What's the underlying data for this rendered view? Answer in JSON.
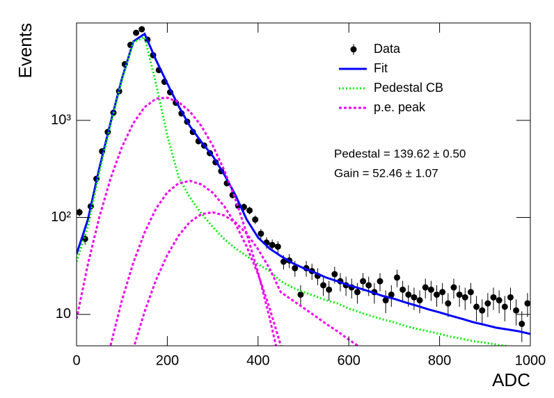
{
  "chart_data": {
    "type": "line",
    "logy": true,
    "xlabel": "ADC",
    "ylabel": "Events",
    "xlim": [
      0,
      1000
    ],
    "xticks": [
      0,
      200,
      400,
      600,
      800,
      1000
    ],
    "ylim": [
      4.75,
      10100
    ],
    "yticks": [
      10,
      {
        "value": 100,
        "label": "10²"
      },
      {
        "value": 1000,
        "label": "10³"
      }
    ],
    "annotations": [
      "Pedestal = 139.62 ± 0.50",
      "Gain = 52.46 ± 1.07"
    ],
    "series": [
      {
        "name": "Data",
        "color": "#000000",
        "x": [
          6.25,
          18.75,
          31.25,
          43.75,
          56.25,
          68.75,
          81.25,
          93.75,
          106.25,
          118.75,
          131.25,
          143.75,
          156.25,
          168.75,
          181.25,
          193.75,
          206.25,
          218.75,
          231.25,
          243.75,
          256.25,
          268.75,
          281.25,
          293.75,
          306.25,
          318.75,
          331.25,
          343.75,
          356.25,
          368.75,
          381.25,
          393.75,
          406.25,
          418.75,
          431.25,
          443.75,
          456.25,
          468.75,
          481.25,
          493.75,
          506.25,
          518.75,
          531.25,
          543.75,
          556.25,
          568.75,
          581.25,
          593.75,
          606.25,
          618.75,
          631.25,
          643.75,
          656.25,
          668.75,
          681.25,
          693.75,
          706.25,
          718.75,
          731.25,
          743.75,
          756.25,
          768.75,
          781.25,
          793.75,
          806.25,
          818.75,
          831.25,
          843.75,
          856.25,
          868.75,
          881.25,
          893.75,
          906.25,
          918.75,
          931.25,
          943.75,
          956.25,
          968.75,
          981.25,
          993.75
        ],
        "values": [
          113,
          60,
          130,
          250,
          480,
          760,
          1200,
          2000,
          3800,
          6000,
          8000,
          8700,
          6800,
          4700,
          3300,
          2500,
          1950,
          1520,
          1180,
          970,
          760,
          610,
          550,
          460,
          370,
          300,
          225,
          170,
          132,
          128,
          118,
          95,
          68,
          55,
          52,
          50,
          35,
          36,
          30,
          16,
          30,
          28,
          25,
          20,
          18,
          26,
          22,
          20,
          19,
          17,
          22,
          20,
          17,
          22,
          14,
          16,
          24,
          18,
          16,
          15,
          14,
          19,
          18,
          16,
          17,
          13,
          19,
          16,
          15,
          17,
          12,
          11,
          13,
          15,
          14,
          12,
          15,
          11,
          8,
          13
        ],
        "errors": [
          10.6,
          7.7,
          11.4,
          15.8,
          21.9,
          27.6,
          34.6,
          44.7,
          61.6,
          77.5,
          89.4,
          93.3,
          82.5,
          68.6,
          57.4,
          50,
          44.2,
          39,
          34.4,
          31.1,
          27.6,
          24.7,
          23.5,
          21.4,
          19.2,
          17.3,
          15,
          13,
          11.5,
          11.3,
          10.9,
          9.7,
          8.2,
          7.4,
          7.2,
          7.1,
          5.9,
          6,
          5.5,
          4,
          5.5,
          5.3,
          5,
          4.5,
          4.2,
          5.1,
          4.7,
          4.5,
          4.4,
          4.1,
          4.7,
          4.5,
          4.1,
          4.7,
          3.7,
          4,
          4.9,
          4.2,
          4,
          3.9,
          3.7,
          4.4,
          4.2,
          4,
          4.1,
          3.6,
          4.4,
          4,
          3.9,
          4.1,
          3.5,
          3.3,
          3.6,
          3.9,
          3.7,
          3.5,
          3.9,
          3.3,
          2.8,
          3.6
        ]
      },
      {
        "name": "Fit",
        "color": "#0000ff",
        "x": [
          0,
          25,
          50,
          75,
          100,
          125,
          150,
          175,
          200,
          225,
          250,
          275,
          300,
          325,
          350,
          375,
          400,
          425,
          450,
          475,
          500,
          525,
          550,
          575,
          600,
          625,
          650,
          675,
          700,
          725,
          750,
          775,
          800,
          825,
          850,
          875,
          900,
          925,
          950,
          975,
          1000
        ],
        "values": [
          42,
          95,
          320,
          950,
          2700,
          6500,
          7800,
          4200,
          2400,
          1400,
          870,
          600,
          430,
          280,
          170,
          95,
          62,
          48,
          40,
          34,
          30,
          27,
          24,
          22,
          20,
          18.5,
          17,
          15.5,
          14.5,
          13.3,
          12.3,
          11.3,
          10.5,
          9.7,
          9,
          8.3,
          7.8,
          7.3,
          7,
          6.7,
          6.3
        ]
      },
      {
        "name": "Pedestal CB",
        "color": "#00ee00",
        "x": [
          0,
          25,
          50,
          75,
          100,
          125,
          150,
          175,
          200,
          225,
          250,
          275,
          300,
          325,
          350,
          375,
          400,
          425,
          450,
          475,
          500,
          525,
          550,
          575,
          600,
          625,
          650,
          675,
          700,
          725,
          750,
          775,
          800,
          825,
          850,
          875,
          900,
          925,
          950,
          975,
          1000
        ],
        "values": [
          35,
          80,
          290,
          900,
          2600,
          6400,
          7200,
          2400,
          700,
          260,
          160,
          110,
          80,
          60,
          48,
          40,
          33,
          28,
          22,
          19,
          17,
          15.5,
          14,
          13,
          11.5,
          10.5,
          9.6,
          8.9,
          8.3,
          7.6,
          7.1,
          6.7,
          6.3,
          5.9,
          5.6,
          5.3,
          5.1,
          4.9,
          4.7,
          4.5,
          4.3
        ]
      },
      {
        "name": "p.e. peak",
        "color": "#ee00ee",
        "curves": [
          {
            "x": [
              0,
              25,
              50,
              75,
              100,
              125,
              150,
              175,
              200,
              225,
              250,
              275,
              300,
              325,
              350,
              375,
              400,
              425,
              450
            ],
            "values": [
              9,
              33,
              100,
              252,
              532,
              935,
              1370,
              1674,
              1714,
              1541,
              1231,
              875,
              552,
              310,
              155,
              68,
              27,
              9.4,
              2.9
            ]
          },
          {
            "x": [
              75,
              100,
              125,
              150,
              175,
              200,
              225,
              250,
              275,
              300,
              325,
              350,
              375,
              400,
              425,
              450,
              475
            ],
            "values": [
              4.8,
              14,
              34,
              70,
              123,
              181,
              225,
              238,
              219,
              180,
              131,
              86,
              50,
              26,
              11.8,
              4.8,
              1.76
            ]
          },
          {
            "x": [
              125,
              150,
              175,
              200,
              225,
              250,
              275,
              300,
              325,
              350,
              375,
              400,
              425,
              450,
              475,
              500,
              525,
              550,
              575,
              600,
              625
            ],
            "values": [
              4.4,
              10.7,
              22.6,
              41,
              65,
              90,
              108,
              113,
              105,
              89,
              68,
              47,
              30,
              17,
              14.1,
              11.7,
              9.7,
              8.0,
              6.7,
              5.5,
              4.6
            ]
          }
        ]
      }
    ]
  }
}
